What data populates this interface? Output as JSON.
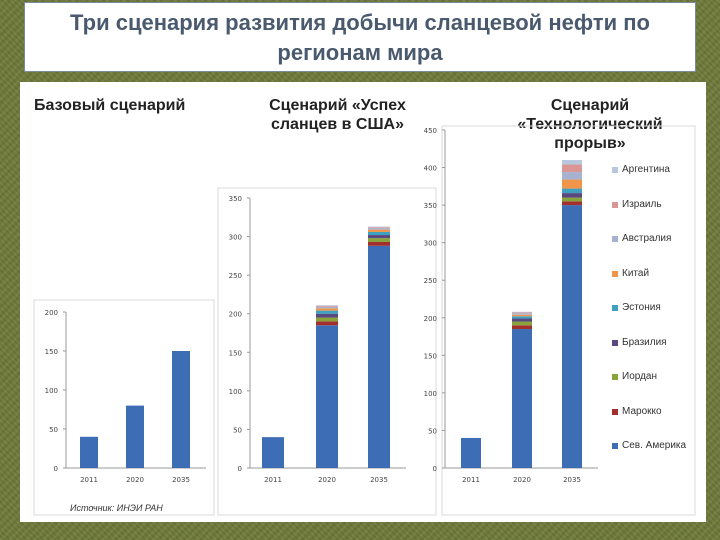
{
  "slide": {
    "title_line1": "Три сценария развития добычи сланцевой нефти по",
    "title_line2": "регионам мира",
    "source": "Источник: ИНЭИ РАН"
  },
  "chart_data": [
    {
      "type": "bar",
      "title": "Базовый сценарий",
      "categories": [
        "2011",
        "2020",
        "2035"
      ],
      "ylim": [
        0,
        200
      ],
      "yticks": [
        0,
        50,
        100,
        150,
        200
      ],
      "series": [
        {
          "name": "Сев. Америка",
          "values": [
            40,
            80,
            150
          ]
        }
      ]
    },
    {
      "type": "bar",
      "stacked": true,
      "title_line1": "Сценарий «Успех",
      "title_line2": "сланцев в США»",
      "categories": [
        "2011",
        "2020",
        "2035"
      ],
      "ylim": [
        0,
        350
      ],
      "yticks": [
        0,
        50,
        100,
        150,
        200,
        250,
        300,
        350
      ],
      "series": [
        {
          "name": "Сев. Америка",
          "values": [
            40,
            185,
            288
          ]
        },
        {
          "name": "Марокко",
          "values": [
            0,
            5,
            5
          ]
        },
        {
          "name": "Иордан",
          "values": [
            0,
            5,
            5
          ]
        },
        {
          "name": "Бразилия",
          "values": [
            0,
            5,
            4
          ]
        },
        {
          "name": "Эстония",
          "values": [
            0,
            4,
            4
          ]
        },
        {
          "name": "Китай",
          "values": [
            0,
            3,
            3
          ]
        },
        {
          "name": "Австралия",
          "values": [
            0,
            2,
            2
          ]
        },
        {
          "name": "Израиль",
          "values": [
            0,
            1,
            1
          ]
        },
        {
          "name": "Аргентина",
          "values": [
            0,
            1,
            1
          ]
        }
      ]
    },
    {
      "type": "bar",
      "stacked": true,
      "title_line1": "Сценарий",
      "title_line2": "«Технологический",
      "title_line3": "прорыв»",
      "categories": [
        "2011",
        "2020",
        "2035"
      ],
      "ylim": [
        0,
        450
      ],
      "yticks": [
        0,
        50,
        100,
        150,
        200,
        250,
        300,
        350,
        400,
        450
      ],
      "series": [
        {
          "name": "Сев. Америка",
          "values": [
            40,
            185,
            350
          ]
        },
        {
          "name": "Марокко",
          "values": [
            0,
            5,
            5
          ]
        },
        {
          "name": "Иордан",
          "values": [
            0,
            5,
            5
          ]
        },
        {
          "name": "Бразилия",
          "values": [
            0,
            4,
            6
          ]
        },
        {
          "name": "Эстония",
          "values": [
            0,
            3,
            6
          ]
        },
        {
          "name": "Китай",
          "values": [
            0,
            2,
            12
          ]
        },
        {
          "name": "Австралия",
          "values": [
            0,
            2,
            10
          ]
        },
        {
          "name": "Израиль",
          "values": [
            0,
            1,
            10
          ]
        },
        {
          "name": "Аргентина",
          "values": [
            0,
            1,
            6
          ]
        }
      ]
    }
  ],
  "legend": [
    {
      "name": "Аргентина",
      "color": "#b9c7dd"
    },
    {
      "name": "Израиль",
      "color": "#d99694"
    },
    {
      "name": "Австралия",
      "color": "#a6b2cf"
    },
    {
      "name": "Китай",
      "color": "#f0954a"
    },
    {
      "name": "Эстония",
      "color": "#3fa1c0"
    },
    {
      "name": "Бразилия",
      "color": "#5a4880"
    },
    {
      "name": "Иордан",
      "color": "#8aa43c"
    },
    {
      "name": "Марокко",
      "color": "#a3302c"
    },
    {
      "name": "Сев. Америка",
      "color": "#3d6eb5"
    }
  ]
}
